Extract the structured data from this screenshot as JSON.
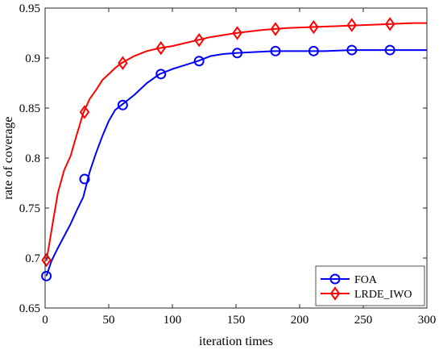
{
  "chart_data": {
    "type": "line",
    "title": "",
    "xlabel": "iteration times",
    "ylabel": "rate of coverage",
    "xlim": [
      0,
      300
    ],
    "ylim": [
      0.65,
      0.95
    ],
    "xticks": [
      0,
      50,
      100,
      150,
      200,
      250,
      300
    ],
    "yticks": [
      0.65,
      0.7,
      0.75,
      0.8,
      0.85,
      0.9,
      0.95
    ],
    "xtick_labels": [
      "0",
      "50",
      "100",
      "150",
      "200",
      "250",
      "300"
    ],
    "ytick_labels": [
      "0.65",
      "0.7",
      "0.75",
      "0.8",
      "0.85",
      "0.9",
      "0.95"
    ],
    "grid": false,
    "legend_position": "bottom-right",
    "series": [
      {
        "name": "FOA",
        "color": "#0000ff",
        "marker": "circle",
        "x": [
          1,
          5,
          10,
          15,
          20,
          25,
          30,
          35,
          40,
          45,
          50,
          55,
          60,
          70,
          80,
          90,
          100,
          110,
          120,
          130,
          140,
          150,
          165,
          180,
          200,
          220,
          240,
          260,
          280,
          300
        ],
        "y": [
          0.682,
          0.697,
          0.71,
          0.722,
          0.734,
          0.748,
          0.761,
          0.786,
          0.805,
          0.822,
          0.837,
          0.848,
          0.853,
          0.863,
          0.875,
          0.884,
          0.889,
          0.893,
          0.897,
          0.902,
          0.904,
          0.905,
          0.906,
          0.907,
          0.907,
          0.907,
          0.908,
          0.908,
          0.908,
          0.908
        ],
        "marker_x": [
          1,
          31,
          61,
          91,
          121,
          151,
          181,
          211,
          241,
          271
        ],
        "marker_y": [
          0.682,
          0.779,
          0.853,
          0.884,
          0.897,
          0.905,
          0.907,
          0.907,
          0.908,
          0.908
        ]
      },
      {
        "name": "LRDE_IWO",
        "color": "#ff0000",
        "marker": "diamond",
        "x": [
          1,
          3,
          6,
          10,
          15,
          20,
          25,
          30,
          35,
          40,
          45,
          50,
          55,
          60,
          70,
          80,
          90,
          100,
          110,
          120,
          130,
          150,
          170,
          190,
          210,
          230,
          250,
          270,
          290,
          300
        ],
        "y": [
          0.697,
          0.712,
          0.735,
          0.765,
          0.788,
          0.802,
          0.824,
          0.845,
          0.859,
          0.868,
          0.878,
          0.884,
          0.89,
          0.895,
          0.902,
          0.907,
          0.91,
          0.912,
          0.915,
          0.918,
          0.921,
          0.925,
          0.928,
          0.93,
          0.931,
          0.932,
          0.933,
          0.934,
          0.935,
          0.935
        ],
        "marker_x": [
          1,
          31,
          61,
          91,
          121,
          151,
          181,
          211,
          241,
          271
        ],
        "marker_y": [
          0.698,
          0.846,
          0.895,
          0.91,
          0.918,
          0.925,
          0.929,
          0.931,
          0.933,
          0.934
        ]
      }
    ]
  }
}
